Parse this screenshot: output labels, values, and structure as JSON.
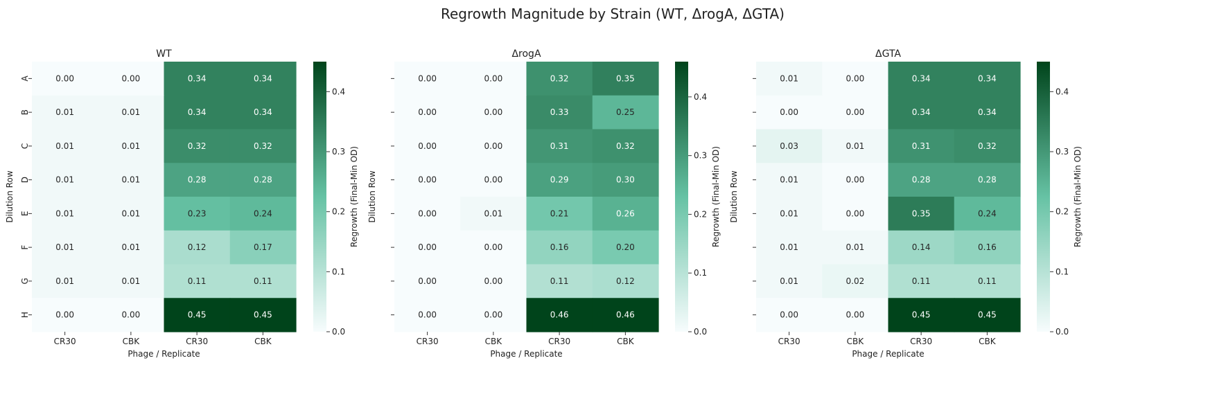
{
  "title": "Regrowth Magnitude by Strain (WT, ΔrogA, ΔGTA)",
  "colors": {
    "scale_low": "#f7fcfd",
    "scale_mid": "#66c2a4",
    "scale_high": "#00441b",
    "text_dark": "#262626",
    "text_light": "#ffffff"
  },
  "chart_data": [
    {
      "type": "heatmap",
      "title": "WT",
      "xlabel": "Phage / Replicate",
      "ylabel": "Dilution Row",
      "columns": [
        "CR30",
        "CBK",
        "CR30",
        "CBK"
      ],
      "rows": [
        "A",
        "B",
        "C",
        "D",
        "E",
        "F",
        "G",
        "H"
      ],
      "values": [
        [
          0.0,
          0.0,
          0.34,
          0.34
        ],
        [
          0.01,
          0.01,
          0.34,
          0.34
        ],
        [
          0.01,
          0.01,
          0.32,
          0.32
        ],
        [
          0.01,
          0.01,
          0.28,
          0.28
        ],
        [
          0.01,
          0.01,
          0.23,
          0.24
        ],
        [
          0.01,
          0.01,
          0.12,
          0.17
        ],
        [
          0.01,
          0.01,
          0.11,
          0.11
        ],
        [
          0.0,
          0.0,
          0.45,
          0.45
        ]
      ],
      "colorbar": {
        "label": "Regrowth (Final-Min OD)",
        "range": [
          0,
          0.45
        ],
        "ticks": [
          "0.0",
          "0.1",
          "0.2",
          "0.3",
          "0.4"
        ]
      }
    },
    {
      "type": "heatmap",
      "title": "ΔrogA",
      "xlabel": "Phage / Replicate",
      "ylabel": "Dilution Row",
      "columns": [
        "CR30",
        "CBK",
        "CR30",
        "CBK"
      ],
      "rows": [
        "A",
        "B",
        "C",
        "D",
        "E",
        "F",
        "G",
        "H"
      ],
      "values": [
        [
          0.0,
          0.0,
          0.32,
          0.35
        ],
        [
          0.0,
          0.0,
          0.33,
          0.25
        ],
        [
          0.0,
          0.0,
          0.31,
          0.32
        ],
        [
          0.0,
          0.0,
          0.29,
          0.3
        ],
        [
          0.0,
          0.01,
          0.21,
          0.26
        ],
        [
          0.0,
          0.0,
          0.16,
          0.2
        ],
        [
          0.0,
          0.0,
          0.11,
          0.12
        ],
        [
          0.0,
          0.0,
          0.46,
          0.46
        ]
      ],
      "colorbar": {
        "label": "Regrowth (Final-Min OD)",
        "range": [
          0,
          0.46
        ],
        "ticks": [
          "0.0",
          "0.1",
          "0.2",
          "0.3",
          "0.4"
        ]
      }
    },
    {
      "type": "heatmap",
      "title": "ΔGTA",
      "xlabel": "Phage / Replicate",
      "ylabel": "Dilution Row",
      "columns": [
        "CR30",
        "CBK",
        "CR30",
        "CBK"
      ],
      "rows": [
        "A",
        "B",
        "C",
        "D",
        "E",
        "F",
        "G",
        "H"
      ],
      "values": [
        [
          0.01,
          0.0,
          0.34,
          0.34
        ],
        [
          0.0,
          0.0,
          0.34,
          0.34
        ],
        [
          0.03,
          0.01,
          0.31,
          0.32
        ],
        [
          0.01,
          0.0,
          0.28,
          0.28
        ],
        [
          0.01,
          0.0,
          0.35,
          0.24
        ],
        [
          0.01,
          0.01,
          0.14,
          0.16
        ],
        [
          0.01,
          0.02,
          0.11,
          0.11
        ],
        [
          0.0,
          0.0,
          0.45,
          0.45
        ]
      ],
      "colorbar": {
        "label": "Regrowth (Final-Min OD)",
        "range": [
          0,
          0.45
        ],
        "ticks": [
          "0.0",
          "0.1",
          "0.2",
          "0.3",
          "0.4"
        ]
      }
    }
  ]
}
